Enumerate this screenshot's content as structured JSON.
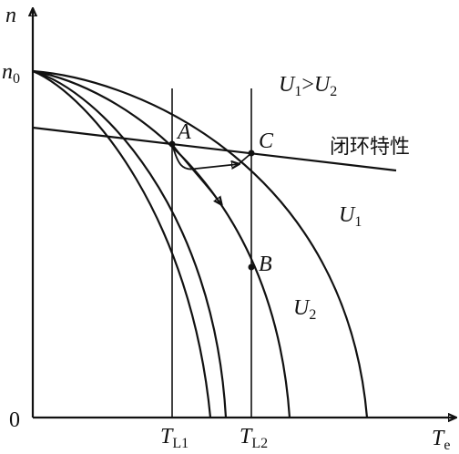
{
  "axes": {
    "y_label": "n",
    "x_label": {
      "main": "T",
      "sub": "e"
    },
    "origin": "0",
    "y_mark": {
      "main": "n",
      "sub": "0"
    }
  },
  "condition": {
    "left": {
      "main": "U",
      "sub": "1"
    },
    "op": ">",
    "right": {
      "main": "U",
      "sub": "2"
    }
  },
  "points": {
    "a": "A",
    "b": "B",
    "c": "C"
  },
  "closed_loop_label": "闭环特性",
  "curve_labels": {
    "u1": {
      "main": "U",
      "sub": "1"
    },
    "u2": {
      "main": "U",
      "sub": "2"
    }
  },
  "load_labels": {
    "tl1": {
      "main": "T",
      "sub": "L1"
    },
    "tl2": {
      "main": "T",
      "sub": "L2"
    }
  }
}
